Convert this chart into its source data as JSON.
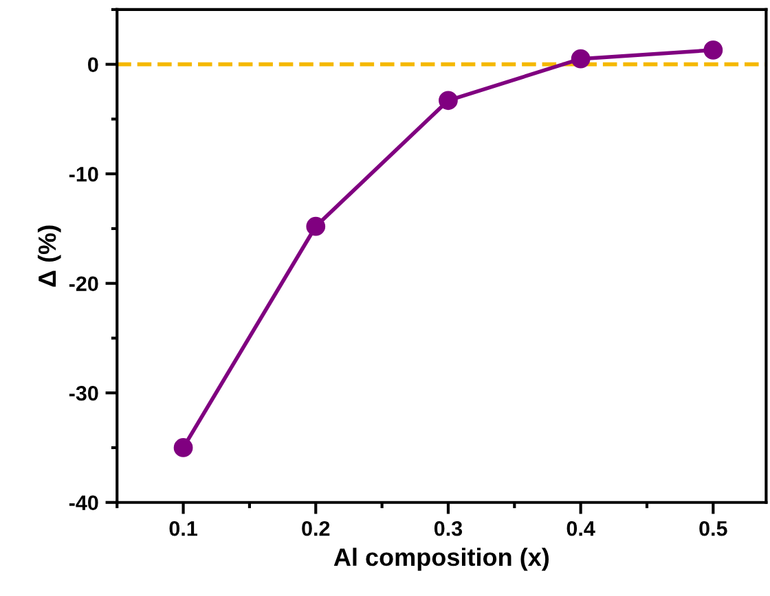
{
  "chart_data": {
    "type": "line",
    "xlabel": "Al composition (x)",
    "ylabel": "Δ (%)",
    "x": [
      0.1,
      0.2,
      0.3,
      0.4,
      0.5
    ],
    "series": [
      {
        "color": "#800080",
        "values": [
          -35,
          -14.8,
          -3.3,
          0.5,
          1.3
        ]
      }
    ],
    "marker": "circle",
    "line_style": "solid",
    "grid": false,
    "legend": false,
    "xlim": [
      0.05,
      0.54
    ],
    "xticks": [
      0.1,
      0.2,
      0.3,
      0.4,
      0.5
    ],
    "ylim": [
      -40,
      5
    ],
    "yticks": [
      -40,
      -30,
      -20,
      -10,
      0
    ],
    "ref_lines": [
      {
        "axis": "y",
        "value": 0,
        "color": "#f5b800",
        "line_style": "dashed"
      }
    ]
  }
}
